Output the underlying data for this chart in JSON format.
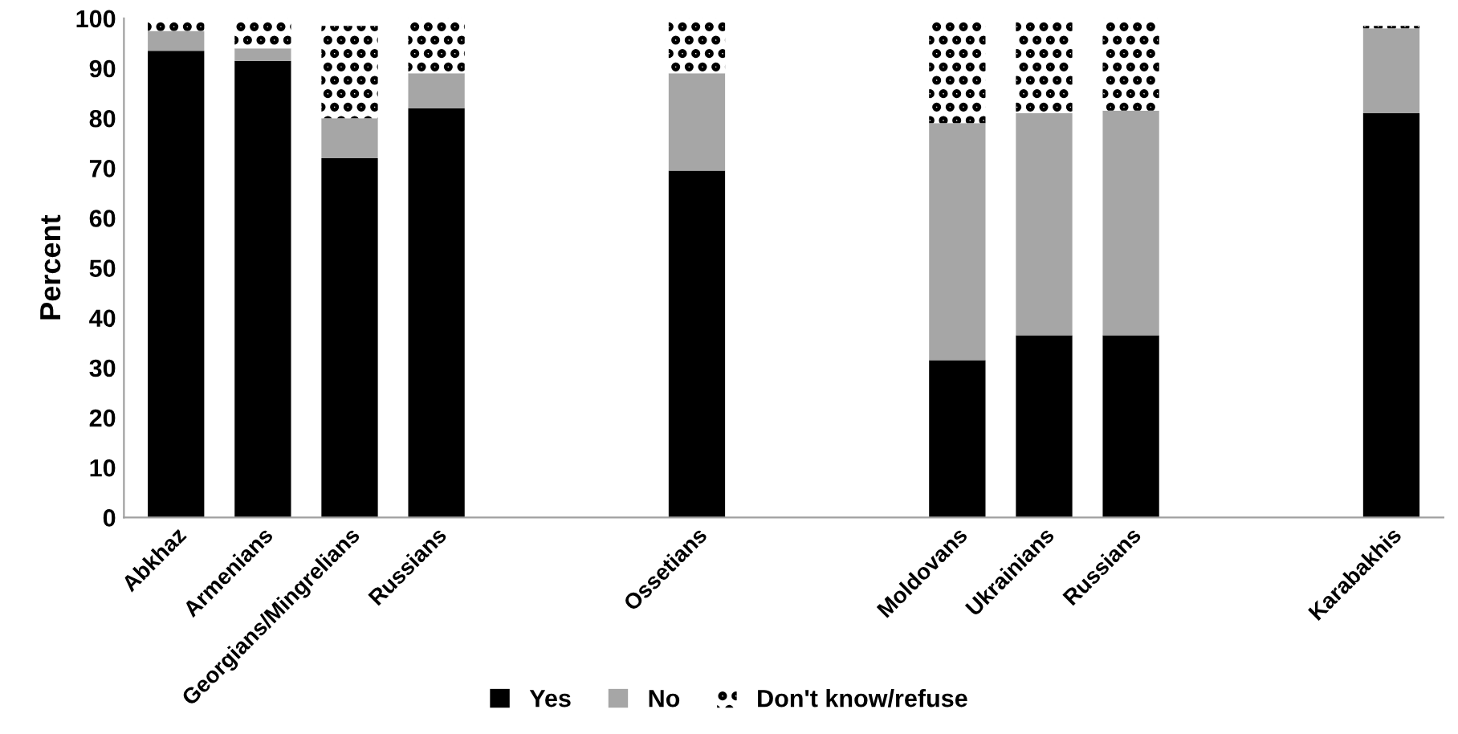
{
  "chart_data": {
    "type": "bar",
    "stacked": true,
    "ylabel": "Percent",
    "ylim": [
      0,
      100
    ],
    "yticks": [
      0,
      10,
      20,
      30,
      40,
      50,
      60,
      70,
      80,
      90,
      100
    ],
    "grid": false,
    "legend": "bottom",
    "categories": [
      "Abkhaz",
      "Armenians",
      "Georgians/Mingrelians",
      "Russians",
      null,
      null,
      "Ossetians",
      null,
      null,
      "Moldovans",
      "Ukrainians",
      "Russians",
      null,
      null,
      "Karabakhis"
    ],
    "series": [
      {
        "name": "Yes",
        "color": "#000000",
        "values": [
          93.5,
          91.5,
          72,
          82,
          null,
          null,
          69.5,
          null,
          null,
          31.5,
          36.5,
          36.5,
          null,
          null,
          81
        ]
      },
      {
        "name": "No",
        "color": "#a6a6a6",
        "values": [
          4,
          2.5,
          8,
          7,
          null,
          null,
          19.5,
          null,
          null,
          47.5,
          44.5,
          45,
          null,
          null,
          17
        ]
      },
      {
        "name": "Don't know/refuse",
        "color": "#ffffff",
        "values": [
          2.5,
          6,
          18.5,
          11,
          null,
          null,
          11,
          null,
          null,
          21,
          19,
          18.5,
          null,
          null,
          0.5
        ]
      }
    ]
  }
}
